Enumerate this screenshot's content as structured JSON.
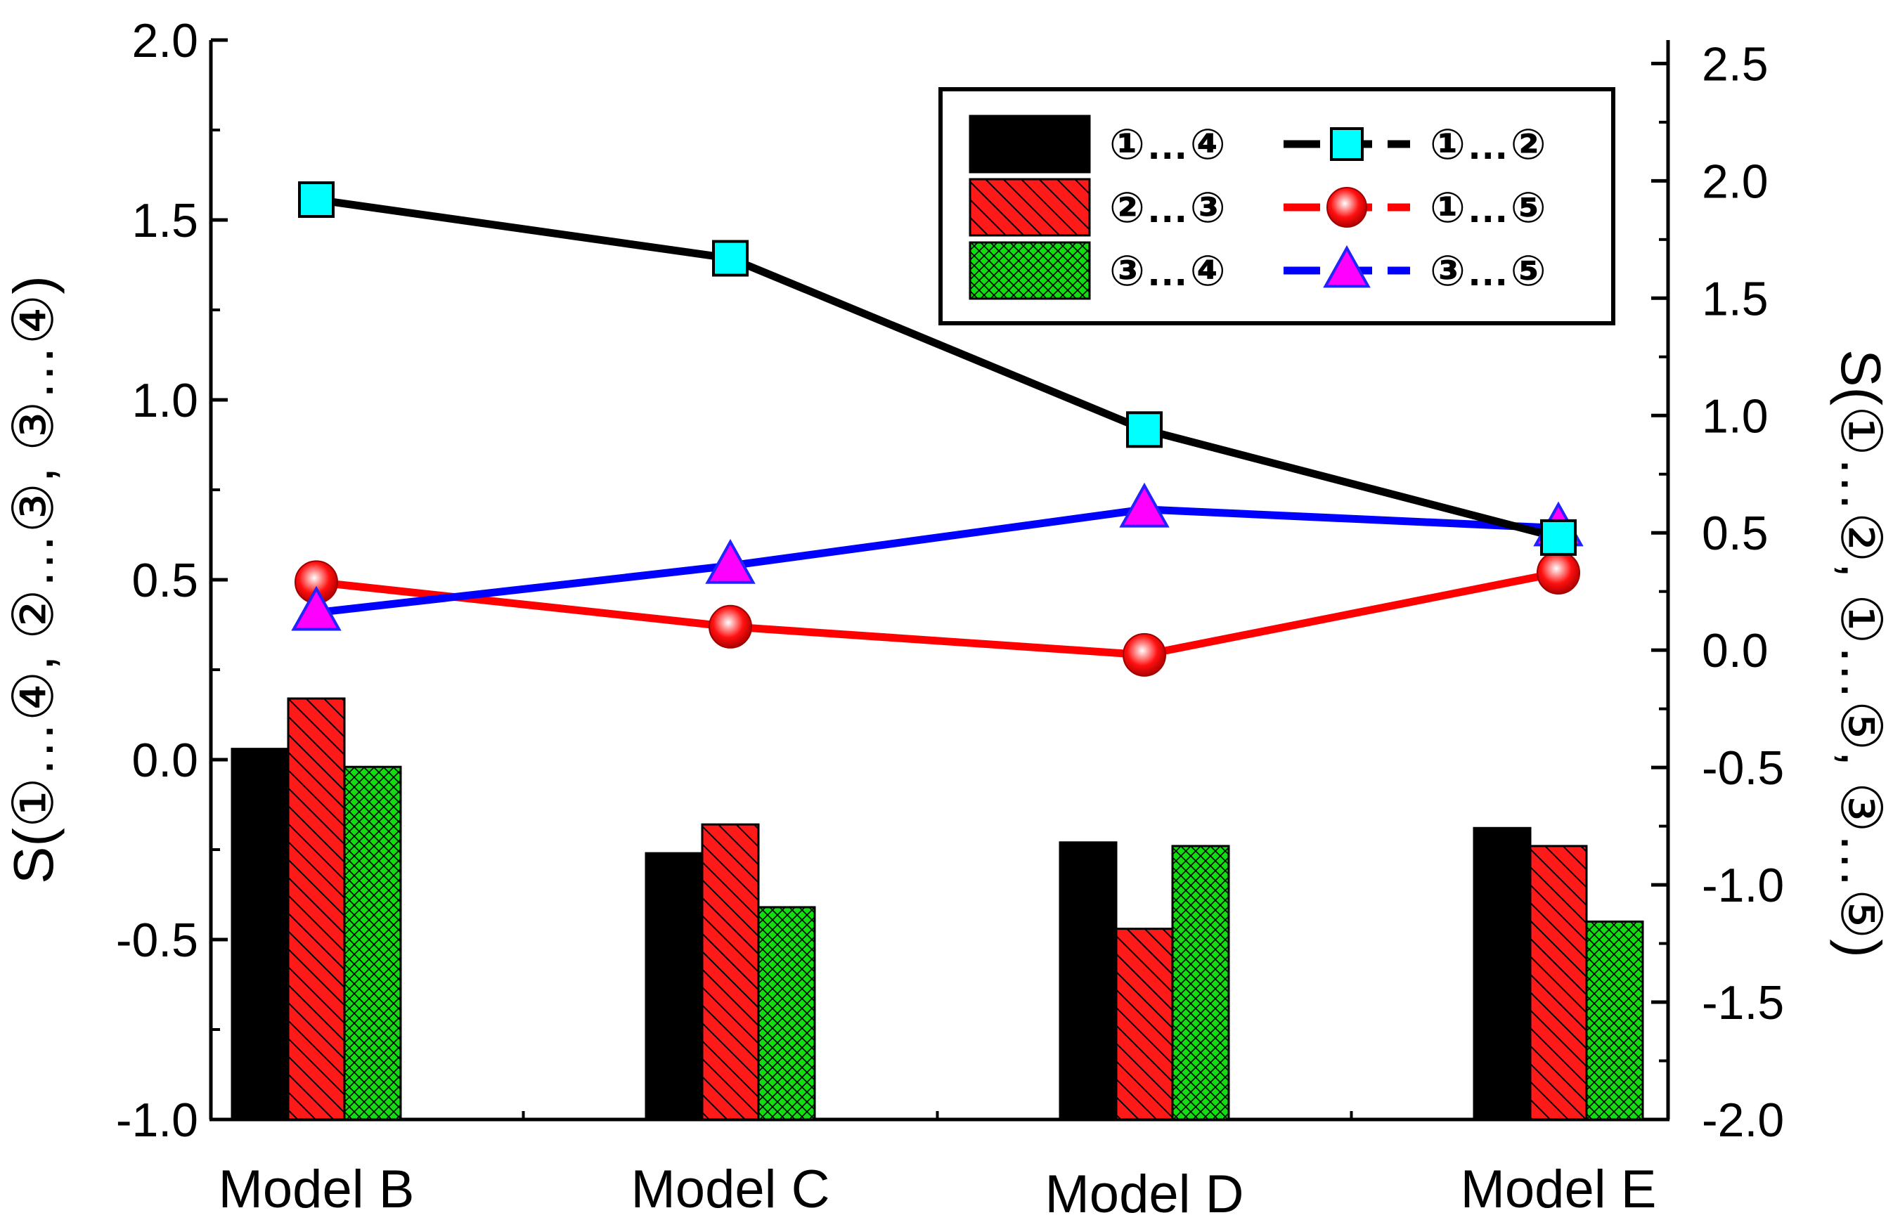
{
  "chart_data": {
    "type": "bar+line (dual y-axis)",
    "categories": [
      "Model B",
      "Model C",
      "Model D",
      "Model E"
    ],
    "left_axis": {
      "title": "S(①…④, ②…③, ③…④)",
      "ylim": [
        -1.0,
        2.0
      ],
      "ticks": [
        "-1.0",
        "-0.5",
        "0.0",
        "0.5",
        "1.0",
        "1.5",
        "2.0"
      ],
      "tick_values": [
        -1.0,
        -0.5,
        0.0,
        0.5,
        1.0,
        1.5,
        2.0
      ]
    },
    "right_axis": {
      "title": "S(①…②, ①…⑤, ③…⑤)",
      "ylim": [
        -2.0,
        2.6
      ],
      "ticks": [
        "-2.0",
        "-1.5",
        "-1.0",
        "-0.5",
        "0.0",
        "0.5",
        "1.0",
        "1.5",
        "2.0",
        "2.5"
      ],
      "tick_values": [
        -2.0,
        -1.5,
        -1.0,
        -0.5,
        0.0,
        0.5,
        1.0,
        1.5,
        2.0,
        2.5
      ]
    },
    "bar_series": [
      {
        "name": "①…④",
        "values": [
          0.03,
          -0.26,
          -0.23,
          -0.19
        ],
        "color": "#000000",
        "pattern": "solid"
      },
      {
        "name": "②…③",
        "values": [
          0.17,
          -0.18,
          -0.47,
          -0.24
        ],
        "color": "#ff0000",
        "pattern": "diagonal"
      },
      {
        "name": "③…④",
        "values": [
          -0.02,
          -0.41,
          -0.24,
          -0.45
        ],
        "color": "#00dd00",
        "pattern": "crosshatch"
      }
    ],
    "line_series": [
      {
        "name": "①…②",
        "values": [
          1.92,
          1.67,
          0.94,
          0.48
        ],
        "line_color": "#000000",
        "marker": "square",
        "marker_color": "#00ffff"
      },
      {
        "name": "①…⑤",
        "values": [
          0.29,
          0.1,
          -0.02,
          0.33
        ],
        "line_color": "#ff0000",
        "marker": "sphere",
        "marker_color": "#ff0000"
      },
      {
        "name": "③…⑤",
        "values": [
          0.16,
          0.36,
          0.6,
          0.52
        ],
        "line_color": "#0000ff",
        "marker": "triangle",
        "marker_color": "#ff00ff"
      }
    ],
    "legend_position": "top-right",
    "grid": false
  }
}
